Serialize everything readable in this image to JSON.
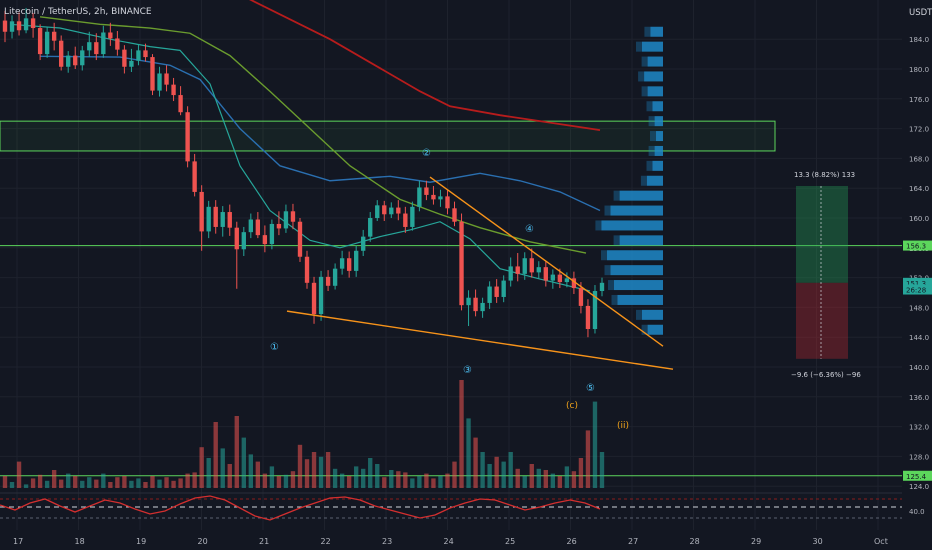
{
  "header": {
    "title": "Litecoin / TetherUS, 2h, BINANCE",
    "currency": "USDT"
  },
  "colors": {
    "background": "#131722",
    "grid": "#1e222d",
    "up": "#26a69a",
    "down": "#ef5350",
    "ma_red": "#b71c1c",
    "ma_blue": "#2a6fb0",
    "ma_green": "#6a9c2e",
    "ma_teal": "#26a69a",
    "zone_green": "#5cd65c",
    "trendline": "#f7931a",
    "volume_profile": "#1e88c8",
    "text": "#b2b5be",
    "wave": "#4fc3f7",
    "label_orange": "#f0a21a",
    "oscillator": "#d32f2f"
  },
  "price_axis": {
    "ticks": [
      "184.0",
      "180.0",
      "176.0",
      "172.0",
      "168.0",
      "164.0",
      "160.0",
      "156.0",
      "152.0",
      "148.0",
      "144.0",
      "140.0",
      "136.0",
      "132.0",
      "128.0",
      "124.0"
    ],
    "labels": [
      {
        "text": "156.3",
        "value": 156.3,
        "color": "#5cd65c"
      },
      {
        "text": "151.3",
        "value": 151.3,
        "color": "#26a69a"
      },
      {
        "text": "26:28",
        "value": 150.4,
        "color": "#26a69a"
      },
      {
        "text": "125.4",
        "value": 125.4,
        "color": "#5cd65c"
      }
    ]
  },
  "oscillator_axis": {
    "ticks": [
      "40.0"
    ]
  },
  "time_axis": {
    "ticks": [
      "17",
      "18",
      "19",
      "20",
      "21",
      "22",
      "23",
      "24",
      "25",
      "26",
      "27",
      "28",
      "29",
      "30",
      "Oct"
    ]
  },
  "annotations": {
    "waves": [
      "①",
      "②",
      "③",
      "④",
      "⑤"
    ],
    "label_c": "(c)",
    "label_ii": "(ii)"
  },
  "position_tool": {
    "target_label": "13.3 (8.82%) 133",
    "stop_label": "−9.6 (−6.36%) −96",
    "entry": 151.3,
    "target": 164.3,
    "stop": 141.1
  },
  "chart_data": {
    "type": "candlestick",
    "title": "Litecoin / TetherUS, 2h, BINANCE",
    "ylabel": "USDT",
    "ylim": [
      122.5,
      189.5
    ],
    "x_ticks": [
      "17",
      "18",
      "19",
      "20",
      "21",
      "22",
      "23",
      "24",
      "25",
      "26",
      "27",
      "28",
      "29",
      "30",
      "Oct"
    ],
    "candles_approx": [
      [
        186.5,
        185.0,
        187.8,
        183.6
      ],
      [
        185.0,
        186.4,
        187.2,
        184.1
      ],
      [
        186.4,
        185.2,
        187.6,
        184.5
      ],
      [
        185.2,
        186.8,
        188.2,
        184.8
      ],
      [
        186.8,
        185.5,
        187.5,
        184.2
      ],
      [
        185.5,
        182.0,
        186.0,
        181.2
      ],
      [
        182.0,
        185.0,
        185.6,
        181.5
      ],
      [
        185.0,
        183.8,
        186.2,
        182.5
      ],
      [
        183.8,
        180.3,
        184.5,
        179.8
      ],
      [
        180.3,
        181.8,
        182.4,
        179.5
      ],
      [
        181.8,
        180.5,
        183.0,
        180.0
      ],
      [
        180.5,
        182.5,
        183.1,
        179.8
      ],
      [
        182.5,
        183.6,
        185.0,
        181.6
      ],
      [
        183.6,
        182.0,
        184.8,
        181.2
      ],
      [
        182.0,
        184.9,
        185.8,
        181.5
      ],
      [
        184.9,
        184.1,
        186.2,
        183.1
      ],
      [
        184.1,
        182.6,
        185.1,
        181.8
      ],
      [
        182.6,
        180.3,
        183.2,
        179.4
      ],
      [
        180.3,
        181.1,
        182.7,
        179.6
      ],
      [
        181.1,
        182.5,
        183.3,
        180.5
      ],
      [
        182.5,
        181.6,
        183.4,
        181.0
      ],
      [
        181.6,
        177.1,
        182.0,
        176.5
      ],
      [
        177.1,
        179.4,
        180.3,
        176.3
      ],
      [
        179.4,
        177.9,
        180.5,
        177.0
      ],
      [
        177.9,
        176.5,
        178.8,
        175.7
      ],
      [
        176.5,
        174.2,
        177.7,
        173.8
      ],
      [
        174.2,
        167.6,
        175.0,
        166.8
      ],
      [
        167.6,
        163.5,
        168.6,
        162.9
      ],
      [
        163.5,
        158.2,
        164.4,
        155.6
      ],
      [
        158.2,
        161.5,
        162.3,
        157.3
      ],
      [
        161.5,
        158.8,
        162.4,
        157.9
      ],
      [
        158.8,
        160.8,
        161.6,
        157.5
      ],
      [
        160.8,
        158.7,
        161.8,
        157.6
      ],
      [
        158.7,
        155.8,
        159.5,
        150.5
      ],
      [
        155.8,
        158.1,
        158.8,
        154.9
      ],
      [
        158.1,
        159.8,
        160.6,
        157.3
      ],
      [
        159.8,
        157.7,
        160.8,
        157.3
      ],
      [
        157.7,
        156.5,
        159.0,
        155.4
      ],
      [
        156.5,
        159.2,
        159.8,
        155.8
      ],
      [
        159.2,
        158.6,
        160.9,
        157.7
      ],
      [
        158.6,
        160.9,
        161.8,
        158.0
      ],
      [
        160.9,
        159.5,
        161.9,
        158.5
      ],
      [
        159.5,
        154.8,
        160.0,
        154.1
      ],
      [
        154.8,
        151.3,
        155.6,
        150.5
      ],
      [
        151.3,
        147.1,
        152.1,
        145.8
      ],
      [
        147.1,
        152.1,
        152.9,
        146.2
      ],
      [
        152.1,
        150.9,
        153.0,
        150.2
      ],
      [
        150.9,
        153.2,
        153.9,
        150.4
      ],
      [
        153.2,
        154.6,
        155.6,
        152.4
      ],
      [
        154.6,
        152.9,
        155.5,
        152.0
      ],
      [
        152.9,
        155.6,
        156.3,
        152.1
      ],
      [
        155.6,
        157.5,
        158.4,
        154.9
      ],
      [
        157.5,
        160.0,
        160.8,
        156.8
      ],
      [
        160.0,
        161.7,
        162.4,
        159.6
      ],
      [
        161.7,
        160.5,
        162.3,
        159.6
      ],
      [
        160.5,
        161.4,
        162.1,
        160.0
      ],
      [
        161.4,
        160.6,
        162.4,
        159.7
      ],
      [
        160.6,
        158.8,
        161.5,
        158.0
      ],
      [
        158.8,
        161.5,
        162.2,
        158.3
      ],
      [
        161.5,
        164.1,
        165.0,
        160.9
      ],
      [
        164.1,
        163.1,
        165.0,
        162.4
      ],
      [
        163.1,
        162.5,
        164.3,
        161.8
      ],
      [
        162.5,
        162.9,
        163.8,
        161.5
      ],
      [
        162.9,
        161.3,
        163.7,
        160.5
      ],
      [
        161.3,
        159.5,
        162.2,
        158.9
      ],
      [
        159.5,
        148.3,
        160.6,
        147.6
      ],
      [
        148.3,
        149.3,
        150.3,
        145.5
      ],
      [
        149.3,
        147.5,
        150.4,
        146.8
      ],
      [
        147.5,
        148.6,
        149.3,
        146.6
      ],
      [
        148.6,
        150.8,
        151.5,
        147.8
      ],
      [
        150.8,
        149.4,
        151.8,
        148.6
      ],
      [
        149.4,
        151.6,
        152.3,
        148.7
      ],
      [
        151.6,
        153.5,
        154.7,
        150.8
      ],
      [
        153.5,
        152.5,
        155.3,
        151.5
      ],
      [
        152.5,
        154.6,
        155.4,
        151.7
      ],
      [
        154.6,
        152.7,
        155.9,
        152.0
      ],
      [
        152.7,
        153.4,
        154.2,
        151.9
      ],
      [
        153.4,
        151.6,
        154.2,
        150.8
      ],
      [
        151.6,
        152.4,
        153.1,
        150.5
      ],
      [
        152.4,
        151.4,
        153.2,
        150.6
      ],
      [
        151.4,
        151.9,
        152.7,
        150.7
      ],
      [
        151.9,
        150.6,
        152.8,
        149.8
      ],
      [
        150.6,
        148.2,
        151.4,
        147.2
      ],
      [
        148.2,
        145.1,
        149.1,
        144.0
      ],
      [
        145.1,
        150.2,
        151.0,
        144.5
      ],
      [
        150.2,
        151.3,
        152.0,
        149.5
      ]
    ],
    "volume_profile_bins": [
      {
        "price": 185,
        "value": 0.18
      },
      {
        "price": 183,
        "value": 0.3
      },
      {
        "price": 181,
        "value": 0.22
      },
      {
        "price": 179,
        "value": 0.27
      },
      {
        "price": 177,
        "value": 0.22
      },
      {
        "price": 175,
        "value": 0.15
      },
      {
        "price": 173,
        "value": 0.12
      },
      {
        "price": 171,
        "value": 0.1
      },
      {
        "price": 169,
        "value": 0.12
      },
      {
        "price": 167,
        "value": 0.15
      },
      {
        "price": 165,
        "value": 0.23
      },
      {
        "price": 163,
        "value": 0.62
      },
      {
        "price": 161,
        "value": 0.75
      },
      {
        "price": 159,
        "value": 0.88
      },
      {
        "price": 157,
        "value": 0.62
      },
      {
        "price": 155,
        "value": 0.8
      },
      {
        "price": 153,
        "value": 0.75
      },
      {
        "price": 151,
        "value": 0.7
      },
      {
        "price": 149,
        "value": 0.65
      },
      {
        "price": 147,
        "value": 0.3
      },
      {
        "price": 145,
        "value": 0.22
      }
    ]
  }
}
